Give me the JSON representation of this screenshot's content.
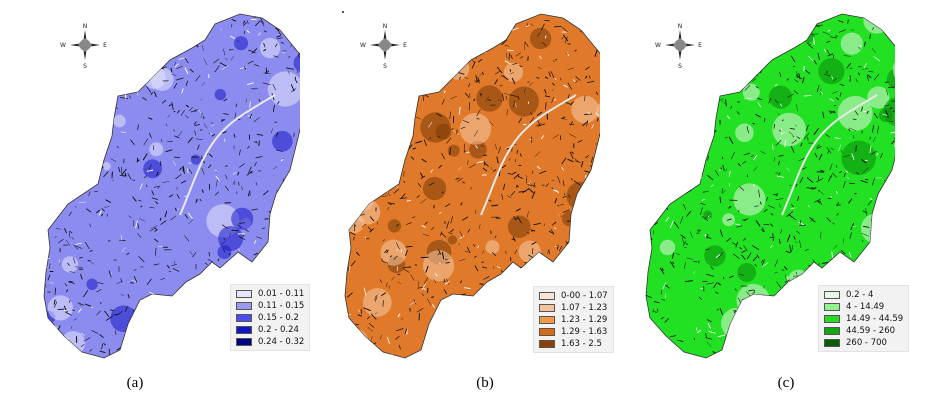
{
  "panels": [
    {
      "caption": "(a)",
      "fill_base": "#8c8cf0",
      "fill_dark": "#1a1ac8",
      "fill_light": "#e4e4fb",
      "legend": [
        {
          "label": "0.01 - 0.11",
          "color": "#e6e6fa"
        },
        {
          "label": "0.11 - 0.15",
          "color": "#9a9aee"
        },
        {
          "label": "0.15 - 0.2",
          "color": "#4b4bf0"
        },
        {
          "label": "0.2 - 0.24",
          "color": "#1212c8"
        },
        {
          "label": "0.24 - 0.32",
          "color": "#000080"
        }
      ]
    },
    {
      "caption": "(b)",
      "fill_base": "#e07a2a",
      "fill_dark": "#7a3a08",
      "fill_light": "#f6c9a4",
      "legend": [
        {
          "label": "0-00 - 1.07",
          "color": "#fbe6d6"
        },
        {
          "label": "1.07 - 1.23",
          "color": "#f6c49c"
        },
        {
          "label": "1.23 - 1.29",
          "color": "#f0994e"
        },
        {
          "label": "1.29 - 1.63",
          "color": "#d86a14"
        },
        {
          "label": "1.63 - 2.5",
          "color": "#8a4108"
        }
      ]
    },
    {
      "caption": "(c)",
      "fill_base": "#22e022",
      "fill_dark": "#0a8a0a",
      "fill_light": "#dff5df",
      "legend": [
        {
          "label": "0.2 - 4",
          "color": "#e8f7e8"
        },
        {
          "label": "4 - 14.49",
          "color": "#8ef58e"
        },
        {
          "label": "14.49 - 44.59",
          "color": "#22dd22"
        },
        {
          "label": "44.59 - 260",
          "color": "#10a810"
        },
        {
          "label": "260 - 700",
          "color": "#045c04"
        }
      ]
    }
  ],
  "compass": {
    "n": "N",
    "s": "S",
    "e": "E",
    "w": "W"
  }
}
